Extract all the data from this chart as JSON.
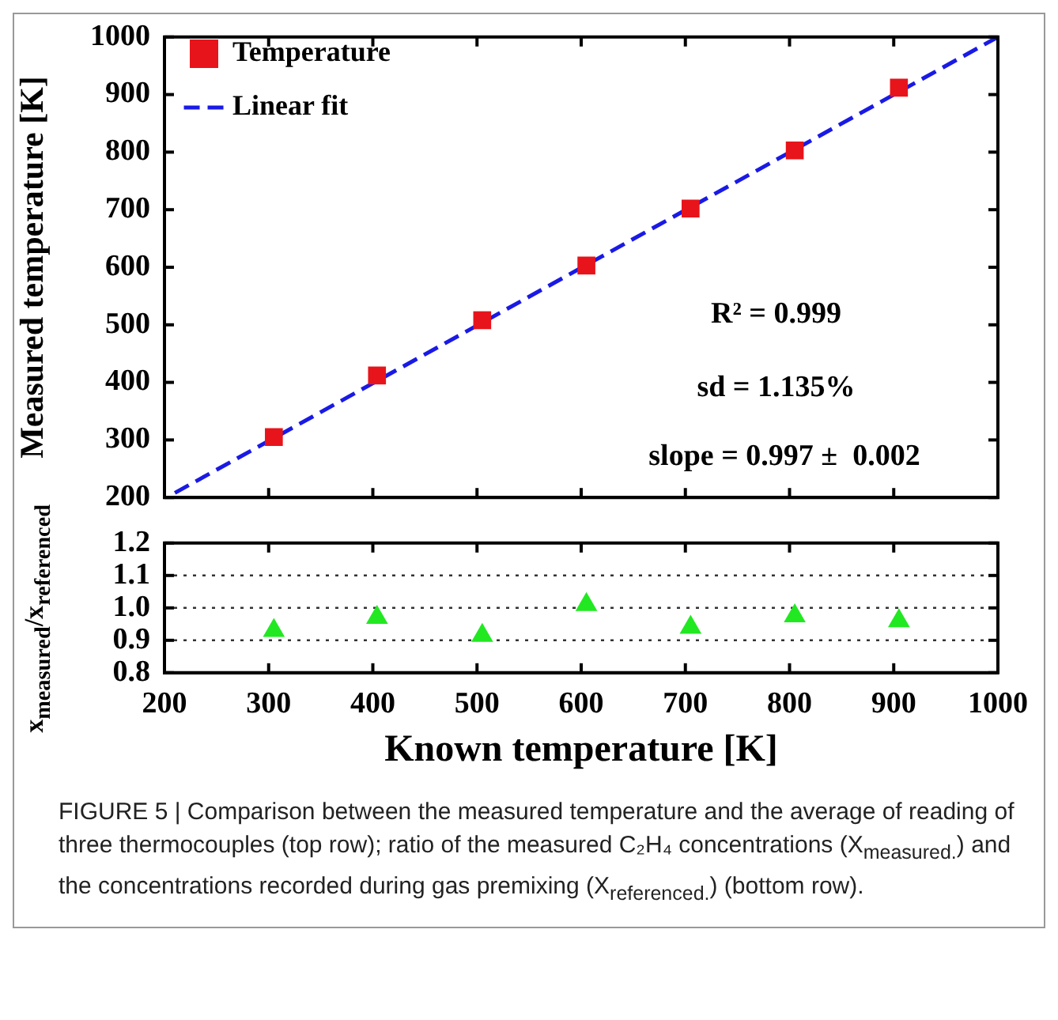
{
  "chart_data": [
    {
      "type": "scatter",
      "ylabel": "Measured temperature [K]",
      "xlim": [
        200,
        1000
      ],
      "xticks": [
        200,
        300,
        400,
        500,
        600,
        700,
        800,
        900,
        1000
      ],
      "ylim": [
        200,
        1000
      ],
      "yticks": [
        200,
        300,
        400,
        500,
        600,
        700,
        800,
        900,
        1000
      ],
      "tick_labels": "y",
      "grid": false,
      "legend": "top left",
      "series": [
        {
          "name": "Temperature",
          "marker": "square",
          "color": "#e8141b",
          "x": [
            305,
            404,
            505,
            605,
            705,
            805,
            905
          ],
          "values": [
            305,
            412,
            508,
            603,
            702,
            803,
            912
          ]
        },
        {
          "name": "Linear fit",
          "type": "line",
          "marker": "none",
          "line_style": "dashed",
          "color": "#1a1ae6",
          "x": [
            210,
            1000
          ],
          "values": [
            208,
            1000
          ]
        }
      ],
      "annotations": [
        "R² = 0.999",
        "sd = 1.135%",
        "slope = 0.997 ±  0.002"
      ]
    },
    {
      "type": "scatter",
      "xlabel": "Known temperature [K]",
      "ylabel": "x$_{measured}$/x$_{referenced}$",
      "xlim": [
        200,
        1000
      ],
      "xticks": [
        200,
        300,
        400,
        500,
        600,
        700,
        800,
        900,
        1000
      ],
      "ylim": [
        0.8,
        1.2
      ],
      "yticks": [
        {
          "value": 0.8,
          "label": "0.8"
        },
        {
          "value": 0.9,
          "label": "0.9"
        },
        {
          "value": 1.0,
          "label": "1.0"
        },
        {
          "value": 1.1,
          "label": "1.1"
        },
        {
          "value": 1.2,
          "label": "1.2"
        }
      ],
      "grid": false,
      "legend": false,
      "series": [
        {
          "marker": "triangle",
          "color": "#22e822",
          "x": [
            305,
            404,
            505,
            605,
            705,
            805,
            905
          ],
          "values": [
            0.93,
            0.97,
            0.915,
            1.01,
            0.94,
            0.975,
            0.96
          ]
        }
      ],
      "ref_lines": [
        {
          "axis": "y",
          "value": 0.9,
          "line_style": "dotted",
          "color": "#333333"
        },
        {
          "axis": "y",
          "value": 1.0,
          "line_style": "dotted",
          "color": "#333333"
        },
        {
          "axis": "y",
          "value": 1.1,
          "line_style": "dotted",
          "color": "#333333"
        }
      ],
      "annotations": [
        "FIGURE 5 | Comparison between the measured temperature and the average of reading of three thermocouples (top row); ratio of the measured C₂H₄ concentrations (X$_{measured.}$) and the concentrations recorded during gas premixing (X$_{referenced.}$) (bottom row)."
      ]
    }
  ]
}
